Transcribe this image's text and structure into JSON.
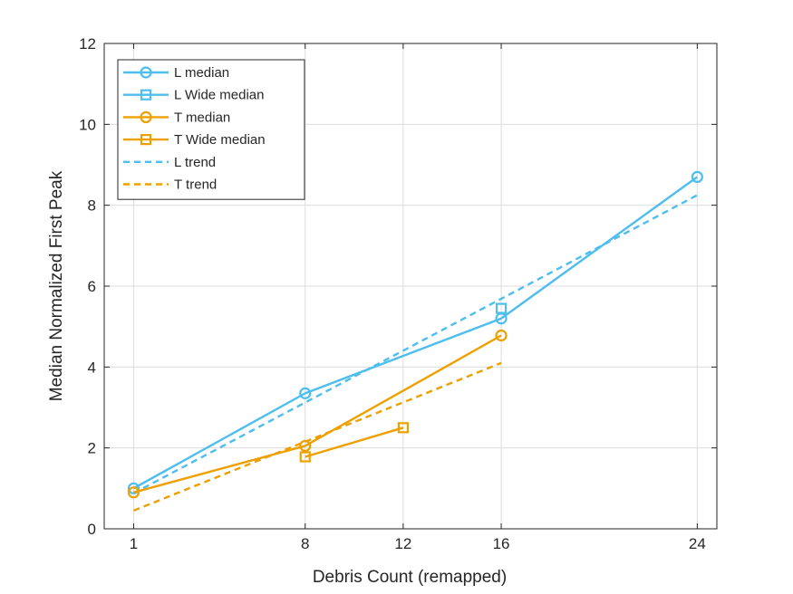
{
  "chart_data": {
    "type": "line",
    "title": "",
    "xlabel": "Debris Count (remapped)",
    "ylabel": "Median Normalized First Peak",
    "xlim": [
      -0.2,
      24.8
    ],
    "ylim": [
      0,
      12
    ],
    "xticks": [
      1,
      8,
      12,
      16,
      24
    ],
    "yticks": [
      0,
      2,
      4,
      6,
      8,
      10,
      12
    ],
    "grid": true,
    "legend_position": "top-left",
    "series": [
      {
        "name": "L median",
        "color": "#4DBEEE",
        "marker": "circle",
        "line": "solid",
        "x": [
          1,
          8,
          16,
          24
        ],
        "y": [
          1.0,
          3.35,
          5.2,
          8.7
        ]
      },
      {
        "name": "L Wide median",
        "color": "#4DBEEE",
        "marker": "square",
        "line": "solid",
        "x": [
          16
        ],
        "y": [
          5.45
        ]
      },
      {
        "name": "T median",
        "color": "#EDA000",
        "marker": "circle",
        "line": "solid",
        "x": [
          1,
          8,
          16
        ],
        "y": [
          0.9,
          2.05,
          4.78
        ]
      },
      {
        "name": "T Wide median",
        "color": "#EDA000",
        "marker": "square",
        "line": "solid",
        "x": [
          8,
          12
        ],
        "y": [
          1.78,
          2.5
        ]
      },
      {
        "name": "L trend",
        "color": "#4DBEEE",
        "marker": "none",
        "line": "dashed",
        "x": [
          1,
          24
        ],
        "y": [
          0.88,
          8.25
        ]
      },
      {
        "name": "T trend",
        "color": "#EDA000",
        "marker": "none",
        "line": "dashed",
        "x": [
          1,
          16
        ],
        "y": [
          0.45,
          4.1
        ]
      }
    ]
  }
}
